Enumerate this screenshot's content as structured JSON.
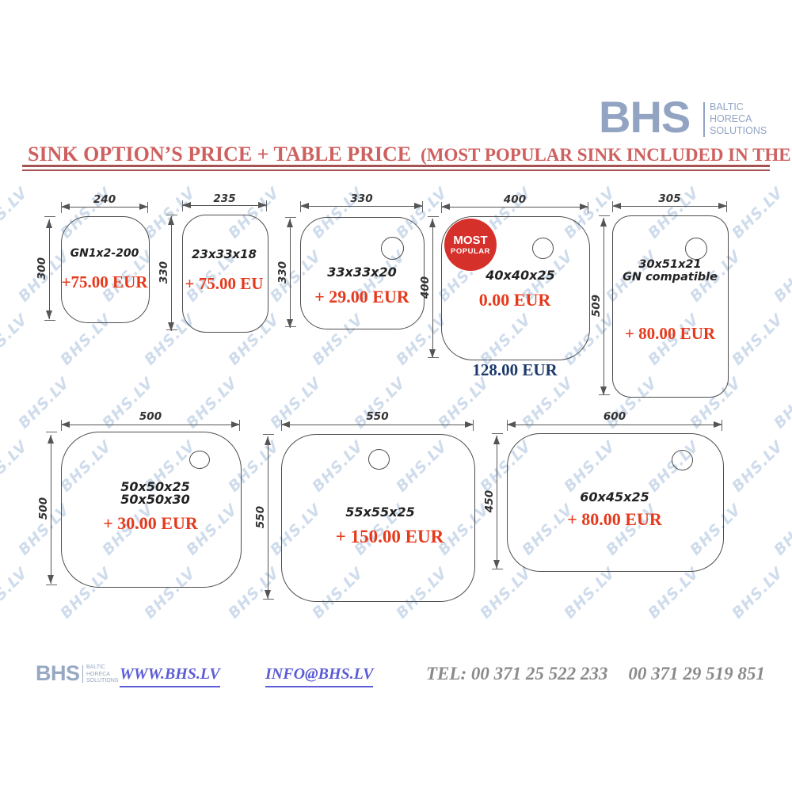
{
  "header": {
    "logo": {
      "name": "BHS",
      "sub": [
        "BALTIC",
        "HORECA",
        "SOLUTIONS"
      ]
    },
    "title": "SINK OPTION’S PRICE + TABLE PRICE",
    "title_note": "(MOST POPULAR SINK INCLUDED IN THE PRICE)"
  },
  "watermark": {
    "text": "BHS.LV",
    "color": "#a9c1de"
  },
  "badge": {
    "line1": "MOST",
    "line2": "POPULAR",
    "color": "#d6302b"
  },
  "colors": {
    "title_red": "#cf6060",
    "rule_red": "#a75252",
    "price_red": "#e6391c",
    "base_price_blue": "#1c3a6b",
    "logo_blue": "#92a4c2",
    "link_blue": "#5c5cd6",
    "phone_gray": "#8a8a8a",
    "outline_gray": "#4d4d4d"
  },
  "sinks": [
    {
      "width_label": "240",
      "height_label": "300",
      "size_label": "GN1x2-200",
      "price": "+75.00 EUR"
    },
    {
      "width_label": "235",
      "height_label": "330",
      "size_label": "23x33x18",
      "price": "+ 75.00 EU"
    },
    {
      "width_label": "330",
      "height_label": "330",
      "size_label": "33x33x20",
      "price": "+ 29.00 EUR"
    },
    {
      "width_label": "400",
      "height_label": "400",
      "size_label": "40x40x25",
      "price": "0.00 EUR",
      "base_price": "128.00 EUR"
    },
    {
      "width_label": "305",
      "height_label": "509",
      "size_label": "30x51x21",
      "size_label2": "GN compatible",
      "price": "+ 80.00 EUR"
    },
    {
      "width_label": "500",
      "height_label": "500",
      "size_label": "50x50x25",
      "size_label2": "50x50x30",
      "price": "+ 30.00 EUR"
    },
    {
      "width_label": "550",
      "height_label": "550",
      "size_label": "55x55x25",
      "price": "+ 150.00 EUR"
    },
    {
      "width_label": "600",
      "height_label": "450",
      "size_label": "60x45x25",
      "price": "+ 80.00 EUR"
    }
  ],
  "footer": {
    "logo": {
      "name": "BHS",
      "sub": [
        "BALTIC",
        "HORECA",
        "SOLUTIONS"
      ]
    },
    "website": "WWW.BHS.LV",
    "email": "INFO@BHS.LV",
    "tel": "TEL: 00 371  25 522 233",
    "tel2": "00 371 29 519 851"
  }
}
